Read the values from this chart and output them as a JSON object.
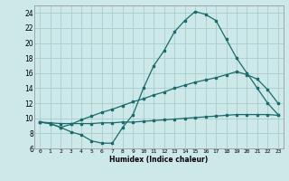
{
  "title": "",
  "xlabel": "Humidex (Indice chaleur)",
  "bg_color": "#cce8e8",
  "grid_color": "#aacccc",
  "line_color": "#1a6b6b",
  "xlim": [
    -0.5,
    23.5
  ],
  "ylim": [
    6,
    25
  ],
  "xticks": [
    0,
    1,
    2,
    3,
    4,
    5,
    6,
    7,
    8,
    9,
    10,
    11,
    12,
    13,
    14,
    15,
    16,
    17,
    18,
    19,
    20,
    21,
    22,
    23
  ],
  "yticks": [
    6,
    8,
    10,
    12,
    14,
    16,
    18,
    20,
    22,
    24
  ],
  "line1_x": [
    0,
    1,
    2,
    3,
    4,
    5,
    6,
    7,
    8,
    9,
    10,
    11,
    12,
    13,
    14,
    15,
    16,
    17,
    18,
    19,
    20,
    21,
    22,
    23
  ],
  "line1_y": [
    9.5,
    9.3,
    8.8,
    8.2,
    7.8,
    7.0,
    6.7,
    6.7,
    8.8,
    10.5,
    14.0,
    17.0,
    19.0,
    21.5,
    23.0,
    24.2,
    23.8,
    23.0,
    20.5,
    18.0,
    16.0,
    14.0,
    12.0,
    10.5
  ],
  "line2_x": [
    0,
    1,
    2,
    3,
    4,
    5,
    6,
    7,
    8,
    9,
    10,
    11,
    12,
    13,
    14,
    15,
    16,
    17,
    18,
    19,
    20,
    21,
    22,
    23
  ],
  "line2_y": [
    9.5,
    9.4,
    9.3,
    9.3,
    9.3,
    9.3,
    9.4,
    9.4,
    9.5,
    9.5,
    9.6,
    9.7,
    9.8,
    9.9,
    10.0,
    10.1,
    10.2,
    10.3,
    10.4,
    10.5,
    10.5,
    10.5,
    10.5,
    10.4
  ],
  "line3_x": [
    0,
    1,
    2,
    3,
    4,
    5,
    6,
    7,
    8,
    9,
    10,
    11,
    12,
    13,
    14,
    15,
    16,
    17,
    18,
    19,
    20,
    21,
    22,
    23
  ],
  "line3_y": [
    9.5,
    9.3,
    8.8,
    9.2,
    9.8,
    10.3,
    10.8,
    11.2,
    11.7,
    12.2,
    12.6,
    13.1,
    13.5,
    14.0,
    14.4,
    14.8,
    15.1,
    15.4,
    15.8,
    16.2,
    15.8,
    15.2,
    13.8,
    12.0
  ]
}
